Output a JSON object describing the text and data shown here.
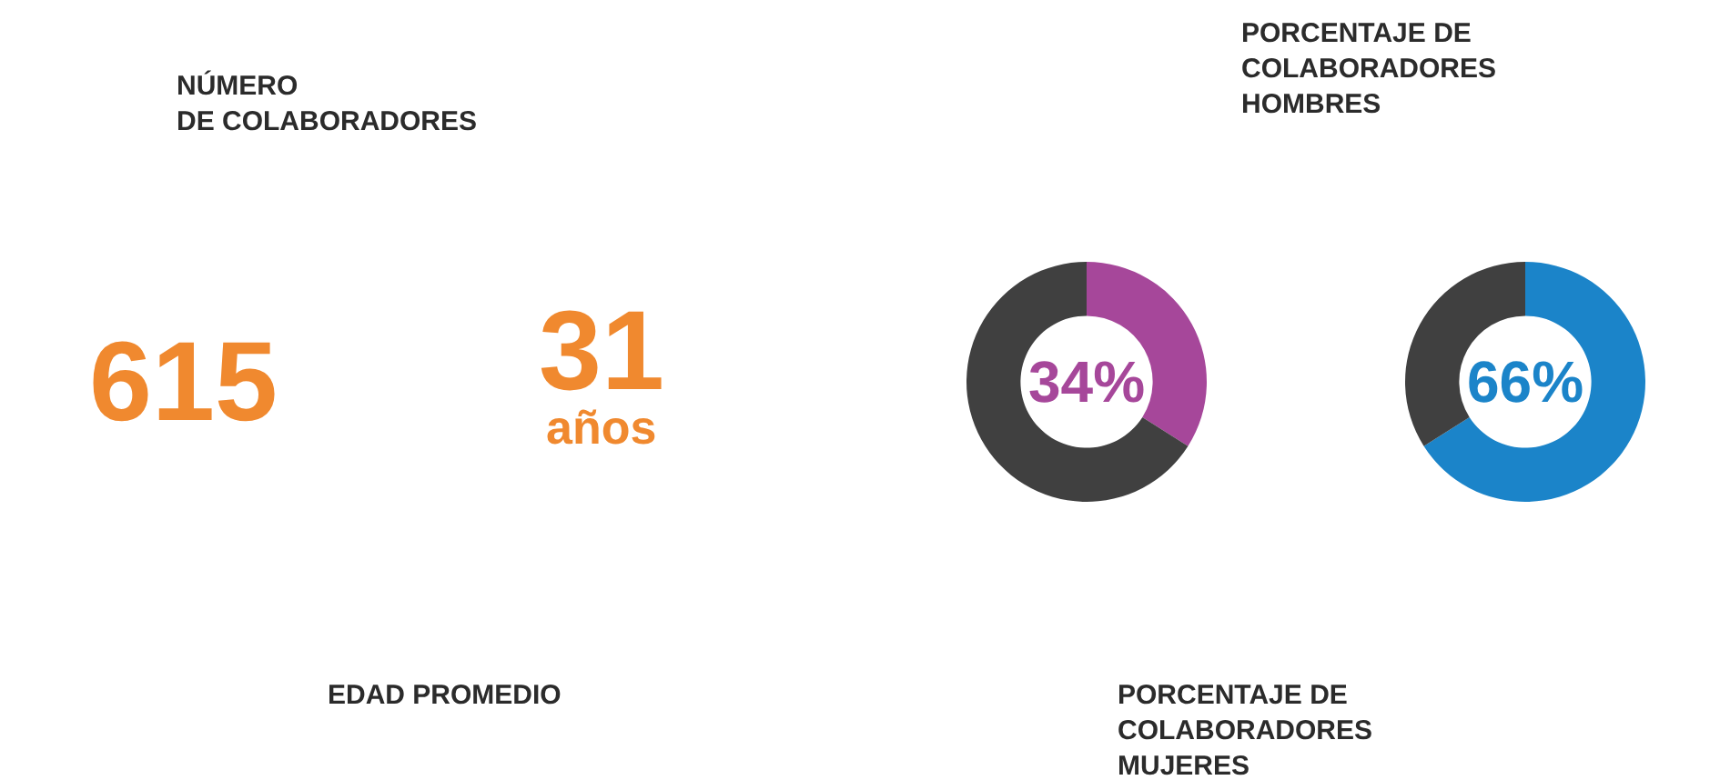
{
  "chart_data": [
    {
      "type": "other",
      "title": "NÚMERO\nDE COLABORADORES",
      "annotations": [
        "615"
      ]
    },
    {
      "type": "other",
      "title": "EDAD PROMEDIO",
      "annotations": [
        "31",
        "años"
      ]
    },
    {
      "type": "donut",
      "title": "PORCENTAJE DE\nCOLABORADORES\nMUJERES",
      "categories": [
        null,
        null
      ],
      "values": [
        34,
        66
      ],
      "colors": [
        "#a6479a",
        "#404040"
      ],
      "value_labels": [
        "34%",
        null
      ]
    },
    {
      "type": "donut",
      "title": "PORCENTAJE DE\nCOLABORADORES\nHOMBRES",
      "categories": [
        null,
        null
      ],
      "values": [
        66,
        34
      ],
      "colors": [
        "#1b84c9",
        "#404040"
      ],
      "value_labels": [
        "66%",
        null
      ]
    }
  ]
}
